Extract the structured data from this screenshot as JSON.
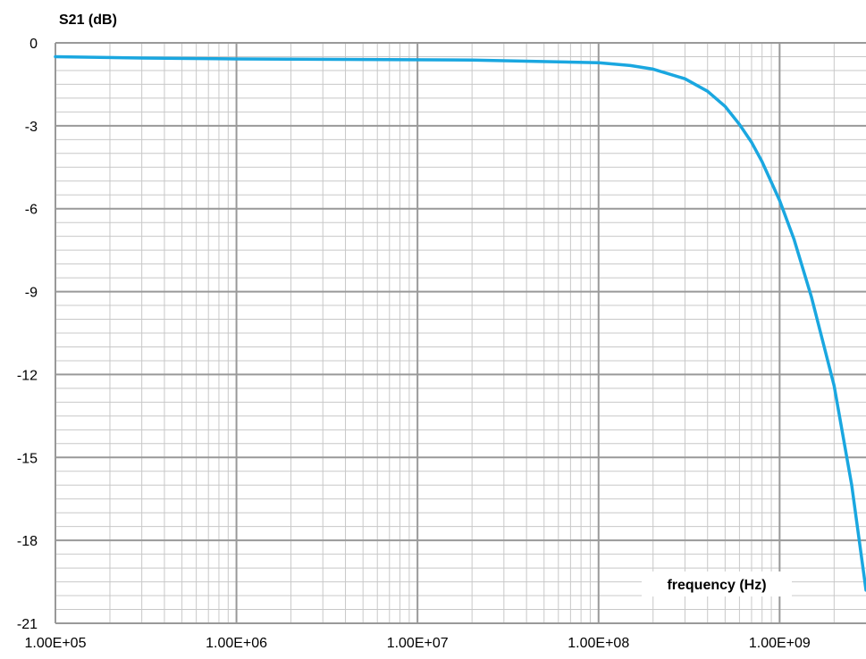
{
  "chart_data": {
    "type": "line",
    "ylabel": "S21 (dB)",
    "xlabel": "frequency (Hz)",
    "x_scale": "log",
    "xlim": [
      100000,
      3000000000
    ],
    "ylim": [
      -21,
      0
    ],
    "y_ticks": [
      0,
      -3,
      -6,
      -9,
      -12,
      -15,
      -18,
      -21
    ],
    "x_ticks": [
      {
        "value": 100000,
        "label": "1.00E+05"
      },
      {
        "value": 1000000,
        "label": "1.00E+06"
      },
      {
        "value": 10000000,
        "label": "1.00E+07"
      },
      {
        "value": 100000000,
        "label": "1.00E+08"
      },
      {
        "value": 1000000000,
        "label": "1.00E+09"
      }
    ],
    "grid": true,
    "minor_grid": true,
    "series": [
      {
        "color": "#1aa7e0",
        "x": [
          100000,
          300000,
          1000000,
          5000000,
          20000000,
          100000000,
          150000000,
          200000000,
          300000000,
          400000000,
          500000000,
          600000000,
          700000000,
          800000000,
          1000000000,
          1200000000,
          1500000000,
          2000000000,
          2500000000,
          3000000000
        ],
        "y": [
          -0.5,
          -0.55,
          -0.58,
          -0.6,
          -0.62,
          -0.72,
          -0.82,
          -0.95,
          -1.3,
          -1.75,
          -2.3,
          -2.95,
          -3.6,
          -4.3,
          -5.7,
          -7.1,
          -9.2,
          -12.4,
          -16.0,
          -19.8
        ]
      }
    ]
  },
  "colors": {
    "major_grid": "#999999",
    "minor_grid": "#c8c8c8",
    "line": "#1aa7e0"
  }
}
